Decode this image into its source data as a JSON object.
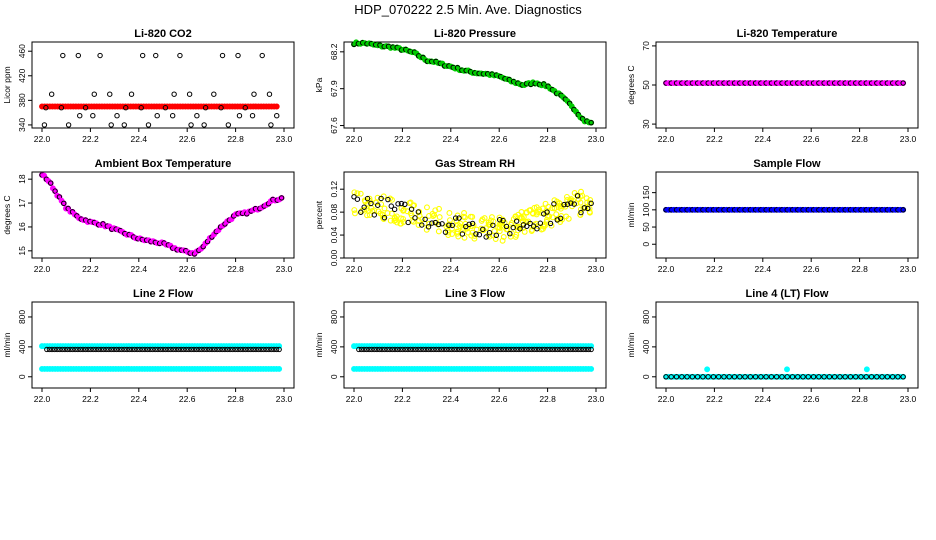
{
  "title": "HDP_070222  2.5 Min. Ave. Diagnostics",
  "chart_data": [
    {
      "type": "scatter",
      "title": "Li-820 CO2",
      "ylabel": "Licor ppm",
      "xlim": [
        22.0,
        23.0
      ],
      "ylim": [
        335,
        475
      ],
      "xticks": [
        "22.0",
        "22.2",
        "22.4",
        "22.6",
        "22.8",
        "23.0"
      ],
      "yticks": [
        "340",
        "380",
        "420",
        "460"
      ],
      "series": [
        {
          "name": "CO2 red",
          "color": "#ff0000",
          "style": "constant",
          "value": 370,
          "xrange": [
            22.0,
            22.97
          ]
        },
        {
          "name": "CO2 outliers",
          "color": "#000000",
          "style": "scattered-levels",
          "levels": [
            340,
            355,
            368,
            390,
            453
          ],
          "x": [
            22.01,
            22.04,
            22.08,
            22.11,
            22.15,
            22.18,
            22.21,
            22.24,
            22.28,
            22.31,
            22.34,
            22.37,
            22.41,
            22.44,
            22.47,
            22.51,
            22.54,
            22.57,
            22.61,
            22.64,
            22.67,
            22.71,
            22.74,
            22.77,
            22.81,
            22.84,
            22.87,
            22.91,
            22.94,
            22.97
          ]
        }
      ]
    },
    {
      "type": "scatter",
      "title": "Li-820 Pressure",
      "ylabel": "kPa",
      "xlim": [
        22.0,
        23.0
      ],
      "ylim": [
        67.58,
        68.28
      ],
      "xticks": [
        "22.0",
        "22.2",
        "22.4",
        "22.6",
        "22.8",
        "23.0"
      ],
      "yticks": [
        "67.6",
        "67.9",
        "68.2"
      ],
      "series": [
        {
          "name": "Pressure",
          "color": "#00cc00",
          "style": "trend",
          "x": [
            22.0,
            22.05,
            22.1,
            22.15,
            22.2,
            22.25,
            22.3,
            22.33,
            22.36,
            22.4,
            22.45,
            22.5,
            22.55,
            22.6,
            22.65,
            22.7,
            22.75,
            22.8,
            22.85,
            22.9,
            22.95,
            22.98
          ],
          "y": [
            68.27,
            68.27,
            68.25,
            68.24,
            68.22,
            68.19,
            68.13,
            68.12,
            68.1,
            68.08,
            68.05,
            68.03,
            68.02,
            68.0,
            67.96,
            67.93,
            67.95,
            67.92,
            67.85,
            67.76,
            67.64,
            67.62
          ]
        }
      ]
    },
    {
      "type": "scatter",
      "title": "Li-820 Temperature",
      "ylabel": "degrees C",
      "xlim": [
        22.0,
        23.0
      ],
      "ylim": [
        28,
        72
      ],
      "xticks": [
        "22.0",
        "22.2",
        "22.4",
        "22.6",
        "22.8",
        "23.0"
      ],
      "yticks": [
        "30",
        "50",
        "70"
      ],
      "series": [
        {
          "name": "Temperature",
          "color": "#ff00ff",
          "style": "constant",
          "value": 51,
          "xrange": [
            22.0,
            22.98
          ]
        }
      ]
    },
    {
      "type": "scatter",
      "title": "Ambient Box Temperature",
      "ylabel": "degrees C",
      "xlim": [
        22.0,
        23.0
      ],
      "ylim": [
        14.7,
        18.3
      ],
      "xticks": [
        "22.0",
        "22.2",
        "22.4",
        "22.6",
        "22.8",
        "23.0"
      ],
      "yticks": [
        "15",
        "16",
        "17",
        "18"
      ],
      "series": [
        {
          "name": "Ambient temperature",
          "color": "#ff00ff",
          "style": "trend",
          "x": [
            22.0,
            22.03,
            22.06,
            22.1,
            22.15,
            22.2,
            22.25,
            22.3,
            22.35,
            22.4,
            22.45,
            22.5,
            22.55,
            22.6,
            22.63,
            22.66,
            22.7,
            22.75,
            22.8,
            22.85,
            22.9,
            22.95,
            22.99
          ],
          "y": [
            18.2,
            17.9,
            17.4,
            16.8,
            16.4,
            16.2,
            16.1,
            15.9,
            15.7,
            15.5,
            15.4,
            15.3,
            15.1,
            14.95,
            14.9,
            15.1,
            15.6,
            16.1,
            16.5,
            16.6,
            16.8,
            17.1,
            17.2
          ]
        }
      ]
    },
    {
      "type": "scatter",
      "title": "Gas Stream RH",
      "ylabel": "percent",
      "xlim": [
        22.0,
        23.0
      ],
      "ylim": [
        0.0,
        0.15
      ],
      "xticks": [
        "22.0",
        "22.2",
        "22.4",
        "22.6",
        "22.8",
        "23.0"
      ],
      "yticks": [
        "0.00",
        "0.04",
        "0.08",
        "0.12"
      ],
      "series": [
        {
          "name": "RH",
          "color": "#ffff00",
          "style": "noisy-trend",
          "x": [
            22.0,
            22.1,
            22.2,
            22.3,
            22.4,
            22.5,
            22.6,
            22.7,
            22.8,
            22.9,
            22.98
          ],
          "y": [
            0.1,
            0.09,
            0.08,
            0.07,
            0.06,
            0.055,
            0.05,
            0.06,
            0.075,
            0.09,
            0.1
          ],
          "spread": 0.022
        }
      ]
    },
    {
      "type": "scatter",
      "title": "Sample Flow",
      "ylabel": "ml/min",
      "xlim": [
        22.0,
        23.0
      ],
      "ylim": [
        -40,
        210
      ],
      "xticks": [
        "22.0",
        "22.2",
        "22.4",
        "22.6",
        "22.8",
        "23.0"
      ],
      "yticks": [
        "0",
        "50",
        "100",
        "150"
      ],
      "series": [
        {
          "name": "Sample flow",
          "color": "#0000ff",
          "style": "constant",
          "value": 100,
          "xrange": [
            22.0,
            22.98
          ]
        }
      ]
    },
    {
      "type": "scatter",
      "title": "Line 2 Flow",
      "ylabel": "ml/min",
      "xlim": [
        22.0,
        23.0
      ],
      "ylim": [
        -150,
        1000
      ],
      "xticks": [
        "22.0",
        "22.2",
        "22.4",
        "22.6",
        "22.8",
        "23.0"
      ],
      "yticks": [
        "0",
        "400",
        "800"
      ],
      "series": [
        {
          "name": "Line 2 high",
          "color": "#00ffff",
          "style": "constant",
          "value": 410,
          "xrange": [
            22.0,
            22.98
          ]
        },
        {
          "name": "Line 2 measured",
          "color": "#000000",
          "style": "constant",
          "value": 365,
          "xrange": [
            22.02,
            22.98
          ]
        },
        {
          "name": "Line 2 low",
          "color": "#00ffff",
          "style": "constant",
          "value": 105,
          "xrange": [
            22.0,
            22.98
          ]
        }
      ]
    },
    {
      "type": "scatter",
      "title": "Line 3 Flow",
      "ylabel": "ml/min",
      "xlim": [
        22.0,
        23.0
      ],
      "ylim": [
        -150,
        1000
      ],
      "xticks": [
        "22.0",
        "22.2",
        "22.4",
        "22.6",
        "22.8",
        "23.0"
      ],
      "yticks": [
        "0",
        "400",
        "800"
      ],
      "series": [
        {
          "name": "Line 3 high",
          "color": "#00ffff",
          "style": "constant",
          "value": 410,
          "xrange": [
            22.0,
            22.98
          ]
        },
        {
          "name": "Line 3 measured",
          "color": "#000000",
          "style": "constant",
          "value": 365,
          "xrange": [
            22.02,
            22.98
          ]
        },
        {
          "name": "Line 3 low",
          "color": "#00ffff",
          "style": "constant",
          "value": 105,
          "xrange": [
            22.0,
            22.98
          ]
        }
      ]
    },
    {
      "type": "scatter",
      "title": "Line 4 (LT) Flow",
      "ylabel": "ml/min",
      "xlim": [
        22.0,
        23.0
      ],
      "ylim": [
        -150,
        1000
      ],
      "xticks": [
        "22.0",
        "22.2",
        "22.4",
        "22.6",
        "22.8",
        "23.0"
      ],
      "yticks": [
        "0",
        "400",
        "800"
      ],
      "series": [
        {
          "name": "Line 4 flow",
          "color": "#00ffff",
          "style": "constant",
          "value": 0,
          "xrange": [
            22.0,
            22.98
          ]
        },
        {
          "name": "Line 4 spikes",
          "color": "#00ffff",
          "style": "points",
          "x": [
            22.17,
            22.5,
            22.83
          ],
          "y": [
            100,
            100,
            100
          ]
        }
      ]
    }
  ]
}
